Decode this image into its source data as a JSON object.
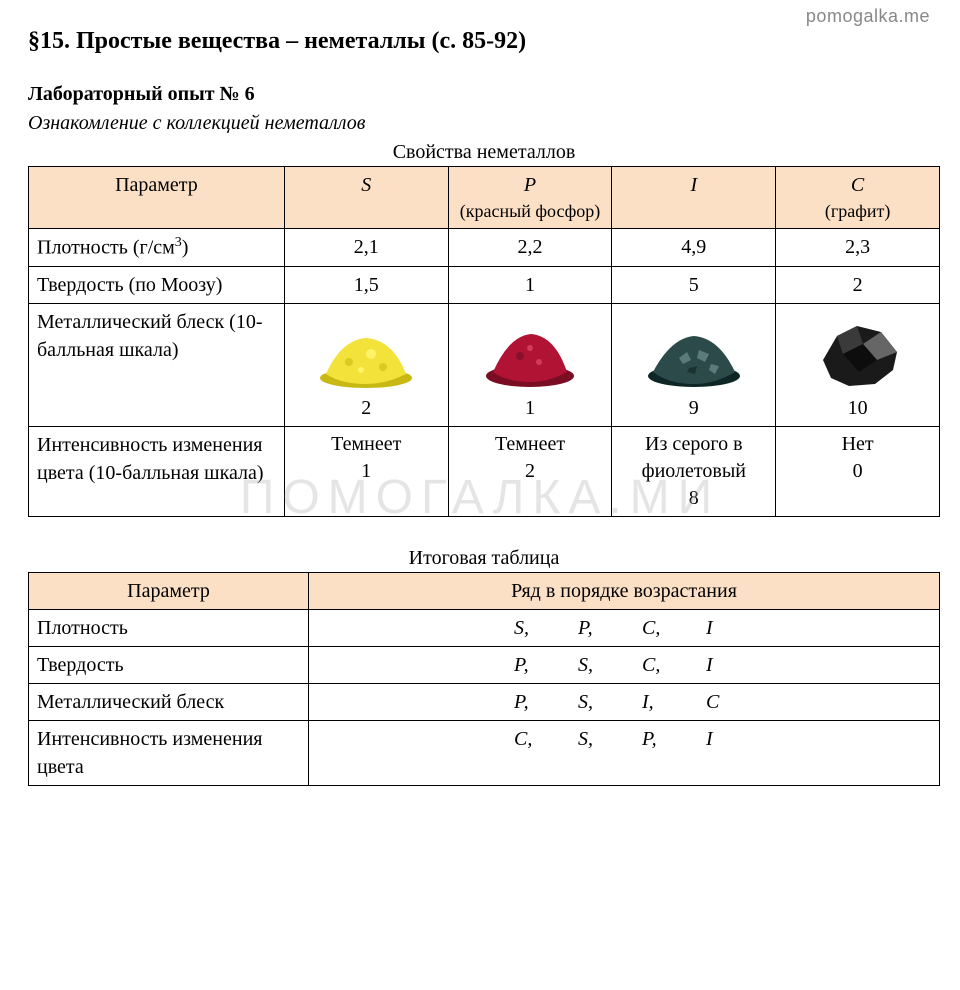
{
  "watermark_top": "pomogalka.me",
  "watermark_center": "ПОМОГАЛКА.МИ",
  "section_title": "§15. Простые вещества – неметаллы (с. 85-92)",
  "lab_title": "Лабораторный опыт № 6",
  "lab_subtitle": "Ознакомление с коллекцией неметаллов",
  "table1_caption": "Свойства неметаллов",
  "table1": {
    "header_bg": "#fbe0c6",
    "border_color": "#000000",
    "param_header": "Параметр",
    "columns": [
      {
        "symbol": "S",
        "sub": ""
      },
      {
        "symbol": "P",
        "sub": "(красный фосфор)"
      },
      {
        "symbol": "I",
        "sub": ""
      },
      {
        "symbol": "C",
        "sub": "(графит)"
      }
    ],
    "rows": {
      "density": {
        "label_html": "Плотность (г/см<sup>3</sup>)",
        "vals": [
          "2,1",
          "2,2",
          "4,9",
          "2,3"
        ]
      },
      "hardness": {
        "label": "Твердость (по Моозу)",
        "vals": [
          "1,5",
          "1",
          "5",
          "2"
        ]
      },
      "luster": {
        "label": "Металлический блеск (10-балльная шкала)",
        "vals": [
          "2",
          "1",
          "9",
          "10"
        ],
        "sample_colors": {
          "S": {
            "fill": "#f2e23a",
            "shadow": "#c7b814"
          },
          "P": {
            "fill": "#b01334",
            "shadow": "#7a0d24"
          },
          "I": {
            "fill": "#2d4a4a",
            "shadow": "#0e2626",
            "flake": "#5b7a7a"
          },
          "C": {
            "fill": "#1a1a1a",
            "hi": "#666666"
          }
        }
      },
      "colorchange": {
        "label": "Интенсивность изменения цвета (10-балльная шкала)",
        "vals": [
          {
            "text": "Темнеет",
            "num": "1"
          },
          {
            "text": "Темнеет",
            "num": "2"
          },
          {
            "text": "Из серого в фиолетовый",
            "num": "8"
          },
          {
            "text": "Нет",
            "num": "0"
          }
        ]
      }
    }
  },
  "table2_caption": "Итоговая таблица",
  "table2": {
    "h_param": "Параметр",
    "h_order": "Ряд в порядке возрастания",
    "rows": [
      {
        "label": "Плотность",
        "seq": [
          "S,",
          "P,",
          "C,",
          "I"
        ]
      },
      {
        "label": "Твердость",
        "seq": [
          "P,",
          "S,",
          "C,",
          "I"
        ]
      },
      {
        "label": "Металлический блеск",
        "seq": [
          "P,",
          "S,",
          "I,",
          "C"
        ]
      },
      {
        "label": "Интенсивность изменения цвета",
        "seq": [
          "C,",
          "S,",
          "P,",
          "I"
        ]
      }
    ]
  }
}
